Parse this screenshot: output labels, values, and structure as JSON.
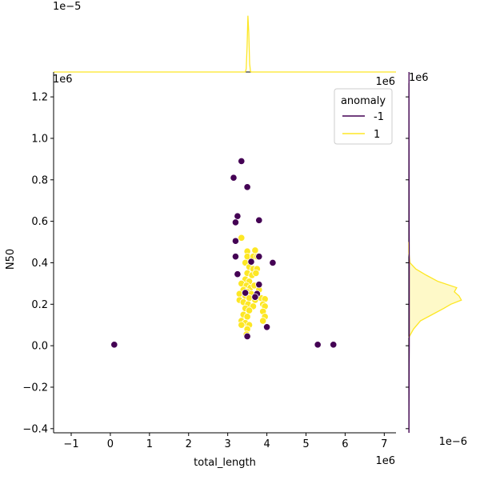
{
  "chart_data": {
    "type": "scatter",
    "xlabel": "total_length",
    "ylabel": "N50",
    "x_multiplier": "1e6",
    "y_multiplier": "1e6",
    "top_marginal_multiplier": "1e−5",
    "top_marginal_x_multiplier": "1e6",
    "right_marginal_multiplier": "1e−6",
    "right_marginal_y_multiplier": "1e6",
    "xlim": [
      -1.45,
      7.3
    ],
    "ylim": [
      -0.42,
      1.32
    ],
    "x_ticks": [
      -1,
      0,
      1,
      2,
      3,
      4,
      5,
      6,
      7
    ],
    "y_ticks": [
      -0.4,
      -0.2,
      0.0,
      0.2,
      0.4,
      0.6,
      0.8,
      1.0,
      1.2
    ],
    "x_tick_labels": [
      "−1",
      "0",
      "1",
      "2",
      "3",
      "4",
      "5",
      "6",
      "7"
    ],
    "y_tick_labels": [
      "−0.4",
      "−0.2",
      "0.0",
      "0.2",
      "0.4",
      "0.6",
      "0.8",
      "1.0",
      "1.2"
    ],
    "grid": false,
    "legend": {
      "title": "anomaly",
      "placement": "top-right",
      "entries": [
        {
          "label": "-1",
          "color": "#440154"
        },
        {
          "label": "1",
          "color": "#fde725"
        }
      ]
    },
    "series": [
      {
        "label": "-1",
        "color": "#440154",
        "points": [
          [
            0.1,
            0.005
          ],
          [
            3.35,
            0.89
          ],
          [
            3.15,
            0.81
          ],
          [
            3.5,
            0.765
          ],
          [
            3.25,
            0.625
          ],
          [
            3.8,
            0.605
          ],
          [
            3.2,
            0.595
          ],
          [
            3.2,
            0.505
          ],
          [
            3.2,
            0.43
          ],
          [
            3.8,
            0.43
          ],
          [
            3.6,
            0.405
          ],
          [
            4.15,
            0.4
          ],
          [
            3.25,
            0.345
          ],
          [
            3.8,
            0.295
          ],
          [
            3.45,
            0.255
          ],
          [
            3.75,
            0.25
          ],
          [
            3.7,
            0.235
          ],
          [
            4.0,
            0.09
          ],
          [
            3.5,
            0.045
          ],
          [
            5.3,
            0.005
          ],
          [
            5.7,
            0.005
          ]
        ]
      },
      {
        "label": "1",
        "color": "#fde725",
        "points": [
          [
            3.35,
            0.52
          ],
          [
            3.5,
            0.455
          ],
          [
            3.7,
            0.46
          ],
          [
            3.5,
            0.43
          ],
          [
            3.65,
            0.43
          ],
          [
            3.75,
            0.43
          ],
          [
            3.45,
            0.4
          ],
          [
            3.55,
            0.38
          ],
          [
            3.65,
            0.37
          ],
          [
            3.75,
            0.37
          ],
          [
            3.5,
            0.35
          ],
          [
            3.62,
            0.34
          ],
          [
            3.72,
            0.35
          ],
          [
            3.45,
            0.32
          ],
          [
            3.55,
            0.31
          ],
          [
            3.35,
            0.3
          ],
          [
            3.48,
            0.29
          ],
          [
            3.58,
            0.28
          ],
          [
            3.68,
            0.29
          ],
          [
            3.4,
            0.27
          ],
          [
            3.5,
            0.26
          ],
          [
            3.6,
            0.25
          ],
          [
            3.8,
            0.27
          ],
          [
            3.3,
            0.25
          ],
          [
            3.45,
            0.24
          ],
          [
            3.55,
            0.23
          ],
          [
            3.7,
            0.22
          ],
          [
            3.85,
            0.23
          ],
          [
            3.95,
            0.225
          ],
          [
            3.3,
            0.22
          ],
          [
            3.4,
            0.21
          ],
          [
            3.52,
            0.2
          ],
          [
            3.65,
            0.19
          ],
          [
            3.9,
            0.2
          ],
          [
            3.95,
            0.19
          ],
          [
            3.45,
            0.18
          ],
          [
            3.55,
            0.17
          ],
          [
            3.9,
            0.165
          ],
          [
            3.4,
            0.15
          ],
          [
            3.5,
            0.14
          ],
          [
            3.95,
            0.14
          ],
          [
            3.35,
            0.12
          ],
          [
            3.45,
            0.11
          ],
          [
            3.55,
            0.1
          ],
          [
            3.9,
            0.12
          ],
          [
            3.35,
            0.1
          ],
          [
            3.5,
            0.08
          ],
          [
            3.48,
            0.055
          ]
        ]
      }
    ],
    "top_marginal": {
      "type": "kde",
      "series": [
        {
          "label": "1",
          "color": "#fde725",
          "peak_x": 3.52,
          "bandwidth": 0.02,
          "fill": false
        }
      ]
    },
    "right_marginal": {
      "type": "kde",
      "series": [
        {
          "label": "1",
          "color": "#fde725",
          "fill": true,
          "y": [
            0.04,
            0.08,
            0.12,
            0.15,
            0.18,
            0.2,
            0.22,
            0.24,
            0.26,
            0.28,
            0.31,
            0.34,
            0.37,
            0.4,
            0.45,
            0.5
          ],
          "density": [
            0,
            0.08,
            0.2,
            0.4,
            0.6,
            0.72,
            0.9,
            0.86,
            0.78,
            0.82,
            0.5,
            0.3,
            0.12,
            0.02,
            0,
            0
          ]
        },
        {
          "label": "-1",
          "color": "#440154",
          "fill": false,
          "y": [
            -0.42,
            -0.3,
            -0.2,
            -0.1,
            0.0,
            0.1,
            0.2,
            0.3,
            0.4,
            0.6,
            0.8,
            1.0,
            1.32
          ],
          "density": [
            0.003,
            0.004,
            0.005,
            0.006,
            0.008,
            0.008,
            0.008,
            0.008,
            0.008,
            0.006,
            0.005,
            0.004,
            0.003
          ]
        }
      ]
    }
  }
}
